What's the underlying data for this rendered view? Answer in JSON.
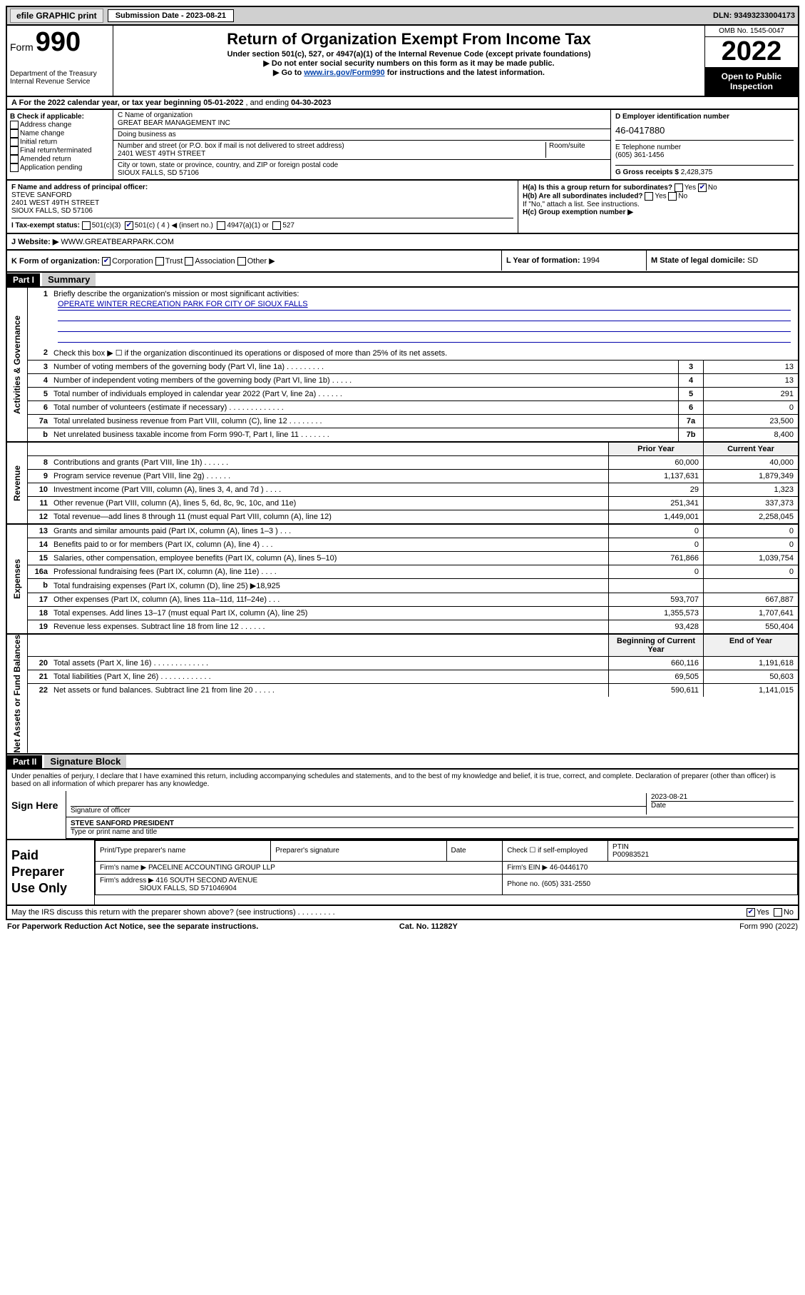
{
  "top": {
    "efile": "efile GRAPHIC print",
    "submission_label": "Submission Date - 2023-08-21",
    "dln": "DLN: 93493233004173"
  },
  "header": {
    "form_label": "Form",
    "form_number": "990",
    "dept": "Department of the Treasury\nInternal Revenue Service",
    "title": "Return of Organization Exempt From Income Tax",
    "subtitle": "Under section 501(c), 527, or 4947(a)(1) of the Internal Revenue Code (except private foundations)",
    "note1": "▶ Do not enter social security numbers on this form as it may be made public.",
    "note2_pre": "▶ Go to ",
    "note2_link": "www.irs.gov/Form990",
    "note2_post": " for instructions and the latest information.",
    "omb": "OMB No. 1545-0047",
    "year": "2022",
    "open": "Open to Public Inspection"
  },
  "row_a": {
    "text_pre": "A For the 2022 calendar year, or tax year beginning ",
    "begin": "05-01-2022",
    "mid": " , and ending ",
    "end": "04-30-2023"
  },
  "b_checks": {
    "label": "B Check if applicable:",
    "items": [
      "Address change",
      "Name change",
      "Initial return",
      "Final return/terminated",
      "Amended return",
      "Application pending"
    ]
  },
  "c": {
    "name_label": "C Name of organization",
    "name": "GREAT BEAR MANAGEMENT INC",
    "dba_label": "Doing business as",
    "street_label": "Number and street (or P.O. box if mail is not delivered to street address)",
    "room_label": "Room/suite",
    "street": "2401 WEST 49TH STREET",
    "city_label": "City or town, state or province, country, and ZIP or foreign postal code",
    "city": "SIOUX FALLS, SD  57106"
  },
  "d": {
    "ein_label": "D Employer identification number",
    "ein": "46-0417880",
    "phone_label": "E Telephone number",
    "phone": "(605) 361-1456",
    "gross_label": "G Gross receipts $",
    "gross": "2,428,375"
  },
  "f": {
    "label": "F  Name and address of principal officer:",
    "name": "STEVE SANFORD",
    "street": "2401 WEST 49TH STREET",
    "city": "SIOUX FALLS, SD  57106"
  },
  "h": {
    "a": "H(a)  Is this a group return for subordinates?",
    "a_no": "No",
    "b": "H(b)  Are all subordinates included?",
    "b_note": "If \"No,\" attach a list. See instructions.",
    "c": "H(c)  Group exemption number ▶"
  },
  "i": {
    "label": "I   Tax-exempt status:",
    "c3": "501(c)(3)",
    "c4": "501(c) ( 4 ) ◀ (insert no.)",
    "a1": "4947(a)(1) or",
    "s527": "527"
  },
  "j": {
    "label": "J   Website: ▶",
    "url": "WWW.GREATBEARPARK.COM"
  },
  "k": {
    "label": "K Form of organization:",
    "corp": "Corporation",
    "trust": "Trust",
    "assoc": "Association",
    "other": "Other ▶",
    "l_label": "L Year of formation:",
    "l_val": "1994",
    "m_label": "M State of legal domicile:",
    "m_val": "SD"
  },
  "part1": {
    "hdr": "Part I",
    "title": "Summary",
    "q1": "Briefly describe the organization's mission or most significant activities:",
    "mission": "OPERATE WINTER RECREATION PARK FOR CITY OF SIOUX FALLS",
    "q2": "Check this box ▶ ☐  if the organization discontinued its operations or disposed of more than 25% of its net assets.",
    "rows_gov": [
      {
        "n": "3",
        "t": "Number of voting members of the governing body (Part VI, line 1a)  .  .  .  .  .  .  .  .  .",
        "b": "3",
        "v": "13"
      },
      {
        "n": "4",
        "t": "Number of independent voting members of the governing body (Part VI, line 1b)  .  .  .  .  .",
        "b": "4",
        "v": "13"
      },
      {
        "n": "5",
        "t": "Total number of individuals employed in calendar year 2022 (Part V, line 2a)  .  .  .  .  .  .",
        "b": "5",
        "v": "291"
      },
      {
        "n": "6",
        "t": "Total number of volunteers (estimate if necessary)  .  .  .  .  .  .  .  .  .  .  .  .  .",
        "b": "6",
        "v": "0"
      },
      {
        "n": "7a",
        "t": "Total unrelated business revenue from Part VIII, column (C), line 12  .  .  .  .  .  .  .  .",
        "b": "7a",
        "v": "23,500"
      },
      {
        "n": "b",
        "t": "Net unrelated business taxable income from Form 990-T, Part I, line 11  .  .  .  .  .  .  .",
        "b": "7b",
        "v": "8,400"
      }
    ],
    "col_prior": "Prior Year",
    "col_curr": "Current Year",
    "rows_rev": [
      {
        "n": "8",
        "t": "Contributions and grants (Part VIII, line 1h)  .  .  .  .  .  .",
        "p": "60,000",
        "c": "40,000"
      },
      {
        "n": "9",
        "t": "Program service revenue (Part VIII, line 2g)  .  .  .  .  .  .",
        "p": "1,137,631",
        "c": "1,879,349"
      },
      {
        "n": "10",
        "t": "Investment income (Part VIII, column (A), lines 3, 4, and 7d )  .  .  .  .",
        "p": "29",
        "c": "1,323"
      },
      {
        "n": "11",
        "t": "Other revenue (Part VIII, column (A), lines 5, 6d, 8c, 9c, 10c, and 11e)",
        "p": "251,341",
        "c": "337,373"
      },
      {
        "n": "12",
        "t": "Total revenue—add lines 8 through 11 (must equal Part VIII, column (A), line 12)",
        "p": "1,449,001",
        "c": "2,258,045"
      }
    ],
    "rows_exp": [
      {
        "n": "13",
        "t": "Grants and similar amounts paid (Part IX, column (A), lines 1–3 )  .  .  .",
        "p": "0",
        "c": "0"
      },
      {
        "n": "14",
        "t": "Benefits paid to or for members (Part IX, column (A), line 4)  .  .  .",
        "p": "0",
        "c": "0"
      },
      {
        "n": "15",
        "t": "Salaries, other compensation, employee benefits (Part IX, column (A), lines 5–10)",
        "p": "761,866",
        "c": "1,039,754"
      },
      {
        "n": "16a",
        "t": "Professional fundraising fees (Part IX, column (A), line 11e)  .  .  .  .",
        "p": "0",
        "c": "0"
      },
      {
        "n": "b",
        "t": "Total fundraising expenses (Part IX, column (D), line 25) ▶18,925",
        "p": "",
        "c": ""
      },
      {
        "n": "17",
        "t": "Other expenses (Part IX, column (A), lines 11a–11d, 11f–24e)  .  .  .",
        "p": "593,707",
        "c": "667,887"
      },
      {
        "n": "18",
        "t": "Total expenses. Add lines 13–17 (must equal Part IX, column (A), line 25)",
        "p": "1,355,573",
        "c": "1,707,641"
      },
      {
        "n": "19",
        "t": "Revenue less expenses. Subtract line 18 from line 12  .  .  .  .  .  .",
        "p": "93,428",
        "c": "550,404"
      }
    ],
    "col_begin": "Beginning of Current Year",
    "col_end": "End of Year",
    "rows_net": [
      {
        "n": "20",
        "t": "Total assets (Part X, line 16)  .  .  .  .  .  .  .  .  .  .  .  .  .",
        "p": "660,116",
        "c": "1,191,618"
      },
      {
        "n": "21",
        "t": "Total liabilities (Part X, line 26)  .  .  .  .  .  .  .  .  .  .  .  .",
        "p": "69,505",
        "c": "50,603"
      },
      {
        "n": "22",
        "t": "Net assets or fund balances. Subtract line 21 from line 20  .  .  .  .  .",
        "p": "590,611",
        "c": "1,141,015"
      }
    ],
    "v_gov": "Activities & Governance",
    "v_rev": "Revenue",
    "v_exp": "Expenses",
    "v_net": "Net Assets or Fund Balances"
  },
  "part2": {
    "hdr": "Part II",
    "title": "Signature Block",
    "decl": "Under penalties of perjury, I declare that I have examined this return, including accompanying schedules and statements, and to the best of my knowledge and belief, it is true, correct, and complete. Declaration of preparer (other than officer) is based on all information of which preparer has any knowledge.",
    "sign_here": "Sign Here",
    "sig_officer": "Signature of officer",
    "sig_date": "2023-08-21",
    "date_label": "Date",
    "officer_name": "STEVE SANFORD PRESIDENT",
    "type_name_label": "Type or print name and title"
  },
  "prep": {
    "label": "Paid Preparer Use Only",
    "c1": "Print/Type preparer's name",
    "c2": "Preparer's signature",
    "c3": "Date",
    "c4a": "Check ☐ if self-employed",
    "c4b": "PTIN",
    "ptin": "P00983521",
    "firm_name_lbl": "Firm's name   ▶",
    "firm_name": "PACELINE ACCOUNTING GROUP LLP",
    "firm_ein_lbl": "Firm's EIN ▶",
    "firm_ein": "46-0446170",
    "firm_addr_lbl": "Firm's address ▶",
    "firm_addr1": "416 SOUTH SECOND AVENUE",
    "firm_addr2": "SIOUX FALLS, SD  571046904",
    "phone_lbl": "Phone no.",
    "phone": "(605) 331-2550"
  },
  "foot": {
    "discuss": "May the IRS discuss this return with the preparer shown above? (see instructions)  .  .  .  .  .  .  .  .  .",
    "yes": "Yes",
    "no": "No"
  },
  "paperwork": {
    "l": "For Paperwork Reduction Act Notice, see the separate instructions.",
    "m": "Cat. No. 11282Y",
    "r": "Form 990 (2022)"
  }
}
